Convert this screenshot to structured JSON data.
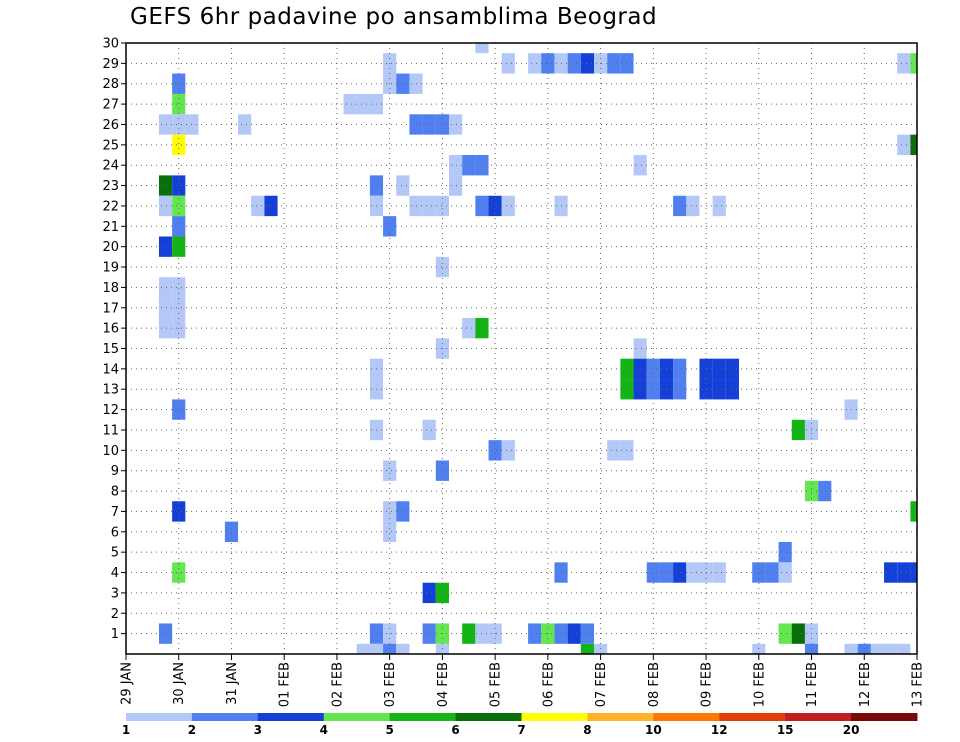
{
  "chart_data": {
    "type": "heatmap",
    "title": "GEFS 6hr padavine po ansamblima Beograd",
    "x_ticks": [
      "29 JAN",
      "30 JAN",
      "31 JAN",
      "01 FEB",
      "02 FEB",
      "03 FEB",
      "04 FEB",
      "05 FEB",
      "06 FEB",
      "07 FEB",
      "08 FEB",
      "09 FEB",
      "10 FEB",
      "11 FEB",
      "12 FEB",
      "13 FEB"
    ],
    "y_ticks": [
      1,
      2,
      3,
      4,
      5,
      6,
      7,
      8,
      9,
      10,
      11,
      12,
      13,
      14,
      15,
      16,
      17,
      18,
      19,
      20,
      21,
      22,
      23,
      24,
      25,
      26,
      27,
      28,
      29,
      30
    ],
    "x_range": [
      "29 JAN 00Z",
      "13 FEB 00Z"
    ],
    "y_range": [
      0,
      30
    ],
    "grid": true,
    "colorbar": {
      "labels": [
        "1",
        "2",
        "3",
        "4",
        "5",
        "6",
        "7",
        "8",
        "10",
        "12",
        "15",
        "20"
      ],
      "colors": [
        "#b4c8f8",
        "#5080f0",
        "#1440d8",
        "#64e650",
        "#14b414",
        "#0a6e0a",
        "#ffff00",
        "#ffb428",
        "#ff7800",
        "#e63c0a",
        "#c31e1e",
        "#780a0a"
      ]
    },
    "cells": [
      {
        "member": 30,
        "date": "04 FEB 18Z",
        "class": 1
      },
      {
        "member": 29,
        "date": "03 FEB 00Z",
        "class": 1
      },
      {
        "member": 29,
        "date": "05 FEB 06Z",
        "class": 1
      },
      {
        "member": 29,
        "date": "05 FEB 18Z",
        "class": 1
      },
      {
        "member": 29,
        "date": "06 FEB 00Z",
        "class": 2
      },
      {
        "member": 29,
        "date": "06 FEB 06Z",
        "class": 1
      },
      {
        "member": 29,
        "date": "06 FEB 12Z",
        "class": 2
      },
      {
        "member": 29,
        "date": "06 FEB 18Z",
        "class": 3
      },
      {
        "member": 29,
        "date": "07 FEB 00Z",
        "class": 1
      },
      {
        "member": 29,
        "date": "07 FEB 06Z",
        "class": 2
      },
      {
        "member": 29,
        "date": "07 FEB 12Z",
        "class": 2
      },
      {
        "member": 29,
        "date": "12 FEB 18Z",
        "class": 1
      },
      {
        "member": 29,
        "date": "13 FEB 00Z",
        "class": 4
      },
      {
        "member": 28,
        "date": "30 JAN 00Z",
        "class": 2
      },
      {
        "member": 28,
        "date": "03 FEB 00Z",
        "class": 1
      },
      {
        "member": 28,
        "date": "03 FEB 06Z",
        "class": 2
      },
      {
        "member": 28,
        "date": "03 FEB 12Z",
        "class": 1
      },
      {
        "member": 27,
        "date": "30 JAN 00Z",
        "class": 4
      },
      {
        "member": 27,
        "date": "02 FEB 06Z",
        "class": 1
      },
      {
        "member": 27,
        "date": "02 FEB 12Z",
        "class": 1
      },
      {
        "member": 27,
        "date": "02 FEB 18Z",
        "class": 1
      },
      {
        "member": 26,
        "date": "29 JAN 18Z",
        "class": 1
      },
      {
        "member": 26,
        "date": "30 JAN 00Z",
        "class": 1
      },
      {
        "member": 26,
        "date": "30 JAN 06Z",
        "class": 1
      },
      {
        "member": 26,
        "date": "31 JAN 06Z",
        "class": 1
      },
      {
        "member": 26,
        "date": "03 FEB 12Z",
        "class": 2
      },
      {
        "member": 26,
        "date": "03 FEB 18Z",
        "class": 2
      },
      {
        "member": 26,
        "date": "04 FEB 00Z",
        "class": 2
      },
      {
        "member": 26,
        "date": "04 FEB 06Z",
        "class": 1
      },
      {
        "member": 25,
        "date": "30 JAN 00Z",
        "class": 7
      },
      {
        "member": 25,
        "date": "12 FEB 18Z",
        "class": 1
      },
      {
        "member": 25,
        "date": "13 FEB 00Z",
        "class": 6
      },
      {
        "member": 24,
        "date": "04 FEB 06Z",
        "class": 1
      },
      {
        "member": 24,
        "date": "04 FEB 12Z",
        "class": 2
      },
      {
        "member": 24,
        "date": "04 FEB 18Z",
        "class": 2
      },
      {
        "member": 24,
        "date": "07 FEB 18Z",
        "class": 1
      },
      {
        "member": 23,
        "date": "29 JAN 18Z",
        "class": 6
      },
      {
        "member": 23,
        "date": "30 JAN 00Z",
        "class": 3
      },
      {
        "member": 23,
        "date": "02 FEB 18Z",
        "class": 2
      },
      {
        "member": 23,
        "date": "03 FEB 06Z",
        "class": 1
      },
      {
        "member": 23,
        "date": "04 FEB 06Z",
        "class": 1
      },
      {
        "member": 22,
        "date": "29 JAN 18Z",
        "class": 1
      },
      {
        "member": 22,
        "date": "30 JAN 00Z",
        "class": 4
      },
      {
        "member": 22,
        "date": "31 JAN 12Z",
        "class": 1
      },
      {
        "member": 22,
        "date": "31 JAN 18Z",
        "class": 3
      },
      {
        "member": 22,
        "date": "02 FEB 18Z",
        "class": 1
      },
      {
        "member": 22,
        "date": "03 FEB 12Z",
        "class": 1
      },
      {
        "member": 22,
        "date": "03 FEB 18Z",
        "class": 1
      },
      {
        "member": 22,
        "date": "04 FEB 00Z",
        "class": 1
      },
      {
        "member": 22,
        "date": "04 FEB 18Z",
        "class": 2
      },
      {
        "member": 22,
        "date": "05 FEB 00Z",
        "class": 3
      },
      {
        "member": 22,
        "date": "05 FEB 06Z",
        "class": 1
      },
      {
        "member": 22,
        "date": "06 FEB 06Z",
        "class": 1
      },
      {
        "member": 22,
        "date": "08 FEB 12Z",
        "class": 2
      },
      {
        "member": 22,
        "date": "08 FEB 18Z",
        "class": 1
      },
      {
        "member": 22,
        "date": "09 FEB 06Z",
        "class": 1
      },
      {
        "member": 21,
        "date": "30 JAN 00Z",
        "class": 2
      },
      {
        "member": 21,
        "date": "03 FEB 00Z",
        "class": 2
      },
      {
        "member": 20,
        "date": "29 JAN 18Z",
        "class": 3
      },
      {
        "member": 20,
        "date": "30 JAN 00Z",
        "class": 5
      },
      {
        "member": 19,
        "date": "04 FEB 00Z",
        "class": 1
      },
      {
        "member": 18,
        "date": "29 JAN 18Z",
        "class": 1
      },
      {
        "member": 18,
        "date": "30 JAN 00Z",
        "class": 1
      },
      {
        "member": 17,
        "date": "29 JAN 18Z",
        "class": 1
      },
      {
        "member": 17,
        "date": "30 JAN 00Z",
        "class": 1
      },
      {
        "member": 16,
        "date": "29 JAN 18Z",
        "class": 1
      },
      {
        "member": 16,
        "date": "30 JAN 00Z",
        "class": 1
      },
      {
        "member": 16,
        "date": "04 FEB 12Z",
        "class": 1
      },
      {
        "member": 16,
        "date": "04 FEB 18Z",
        "class": 5
      },
      {
        "member": 15,
        "date": "04 FEB 00Z",
        "class": 1
      },
      {
        "member": 15,
        "date": "07 FEB 18Z",
        "class": 1
      },
      {
        "member": 14,
        "date": "02 FEB 18Z",
        "class": 1
      },
      {
        "member": 14,
        "date": "07 FEB 12Z",
        "class": 5
      },
      {
        "member": 14,
        "date": "07 FEB 18Z",
        "class": 3
      },
      {
        "member": 14,
        "date": "08 FEB 00Z",
        "class": 2
      },
      {
        "member": 14,
        "date": "08 FEB 06Z",
        "class": 3
      },
      {
        "member": 14,
        "date": "08 FEB 12Z",
        "class": 2
      },
      {
        "member": 14,
        "date": "09 FEB 00Z",
        "class": 3
      },
      {
        "member": 14,
        "date": "09 FEB 06Z",
        "class": 3
      },
      {
        "member": 14,
        "date": "09 FEB 12Z",
        "class": 3
      },
      {
        "member": 13,
        "date": "02 FEB 18Z",
        "class": 1
      },
      {
        "member": 13,
        "date": "07 FEB 12Z",
        "class": 5
      },
      {
        "member": 13,
        "date": "07 FEB 18Z",
        "class": 3
      },
      {
        "member": 13,
        "date": "08 FEB 00Z",
        "class": 2
      },
      {
        "member": 13,
        "date": "08 FEB 06Z",
        "class": 3
      },
      {
        "member": 13,
        "date": "08 FEB 12Z",
        "class": 2
      },
      {
        "member": 13,
        "date": "09 FEB 00Z",
        "class": 3
      },
      {
        "member": 13,
        "date": "09 FEB 06Z",
        "class": 3
      },
      {
        "member": 13,
        "date": "09 FEB 12Z",
        "class": 3
      },
      {
        "member": 12,
        "date": "30 JAN 00Z",
        "class": 2
      },
      {
        "member": 12,
        "date": "11 FEB 18Z",
        "class": 1
      },
      {
        "member": 11,
        "date": "02 FEB 18Z",
        "class": 1
      },
      {
        "member": 11,
        "date": "03 FEB 18Z",
        "class": 1
      },
      {
        "member": 11,
        "date": "10 FEB 18Z",
        "class": 5
      },
      {
        "member": 11,
        "date": "11 FEB 00Z",
        "class": 1
      },
      {
        "member": 10,
        "date": "05 FEB 00Z",
        "class": 2
      },
      {
        "member": 10,
        "date": "05 FEB 06Z",
        "class": 1
      },
      {
        "member": 10,
        "date": "07 FEB 06Z",
        "class": 1
      },
      {
        "member": 10,
        "date": "07 FEB 12Z",
        "class": 1
      },
      {
        "member": 9,
        "date": "03 FEB 00Z",
        "class": 1
      },
      {
        "member": 9,
        "date": "04 FEB 00Z",
        "class": 2
      },
      {
        "member": 8,
        "date": "11 FEB 00Z",
        "class": 4
      },
      {
        "member": 8,
        "date": "11 FEB 06Z",
        "class": 2
      },
      {
        "member": 7,
        "date": "30 JAN 00Z",
        "class": 3
      },
      {
        "member": 7,
        "date": "03 FEB 00Z",
        "class": 1
      },
      {
        "member": 7,
        "date": "03 FEB 06Z",
        "class": 2
      },
      {
        "member": 7,
        "date": "13 FEB 00Z",
        "class": 5
      },
      {
        "member": 6,
        "date": "31 JAN 00Z",
        "class": 2
      },
      {
        "member": 6,
        "date": "03 FEB 00Z",
        "class": 1
      },
      {
        "member": 5,
        "date": "10 FEB 12Z",
        "class": 2
      },
      {
        "member": 4,
        "date": "30 JAN 00Z",
        "class": 4
      },
      {
        "member": 4,
        "date": "06 FEB 06Z",
        "class": 2
      },
      {
        "member": 4,
        "date": "08 FEB 00Z",
        "class": 2
      },
      {
        "member": 4,
        "date": "08 FEB 06Z",
        "class": 2
      },
      {
        "member": 4,
        "date": "08 FEB 12Z",
        "class": 3
      },
      {
        "member": 4,
        "date": "08 FEB 18Z",
        "class": 1
      },
      {
        "member": 4,
        "date": "09 FEB 00Z",
        "class": 1
      },
      {
        "member": 4,
        "date": "09 FEB 06Z",
        "class": 1
      },
      {
        "member": 4,
        "date": "10 FEB 00Z",
        "class": 2
      },
      {
        "member": 4,
        "date": "10 FEB 06Z",
        "class": 2
      },
      {
        "member": 4,
        "date": "10 FEB 12Z",
        "class": 1
      },
      {
        "member": 4,
        "date": "12 FEB 12Z",
        "class": 3
      },
      {
        "member": 4,
        "date": "12 FEB 18Z",
        "class": 3
      },
      {
        "member": 4,
        "date": "13 FEB 00Z",
        "class": 3
      },
      {
        "member": 3,
        "date": "03 FEB 18Z",
        "class": 3
      },
      {
        "member": 3,
        "date": "04 FEB 00Z",
        "class": 5
      },
      {
        "member": 1,
        "date": "29 JAN 18Z",
        "class": 2
      },
      {
        "member": 1,
        "date": "02 FEB 18Z",
        "class": 2
      },
      {
        "member": 1,
        "date": "03 FEB 00Z",
        "class": 1
      },
      {
        "member": 1,
        "date": "03 FEB 18Z",
        "class": 2
      },
      {
        "member": 1,
        "date": "04 FEB 00Z",
        "class": 4
      },
      {
        "member": 1,
        "date": "04 FEB 12Z",
        "class": 5
      },
      {
        "member": 1,
        "date": "04 FEB 18Z",
        "class": 1
      },
      {
        "member": 1,
        "date": "05 FEB 00Z",
        "class": 1
      },
      {
        "member": 1,
        "date": "05 FEB 18Z",
        "class": 2
      },
      {
        "member": 1,
        "date": "06 FEB 00Z",
        "class": 4
      },
      {
        "member": 1,
        "date": "06 FEB 06Z",
        "class": 2
      },
      {
        "member": 1,
        "date": "06 FEB 12Z",
        "class": 3
      },
      {
        "member": 1,
        "date": "06 FEB 18Z",
        "class": 2
      },
      {
        "member": 1,
        "date": "10 FEB 12Z",
        "class": 4
      },
      {
        "member": 1,
        "date": "10 FEB 18Z",
        "class": 6
      },
      {
        "member": 1,
        "date": "11 FEB 00Z",
        "class": 1
      },
      {
        "member": 0,
        "date": "02 FEB 12Z",
        "class": 1
      },
      {
        "member": 0,
        "date": "02 FEB 18Z",
        "class": 1
      },
      {
        "member": 0,
        "date": "03 FEB 00Z",
        "class": 2
      },
      {
        "member": 0,
        "date": "03 FEB 06Z",
        "class": 1
      },
      {
        "member": 0,
        "date": "04 FEB 00Z",
        "class": 1
      },
      {
        "member": 0,
        "date": "06 FEB 18Z",
        "class": 5
      },
      {
        "member": 0,
        "date": "07 FEB 00Z",
        "class": 1
      },
      {
        "member": 0,
        "date": "10 FEB 00Z",
        "class": 1
      },
      {
        "member": 0,
        "date": "11 FEB 00Z",
        "class": 2
      },
      {
        "member": 0,
        "date": "11 FEB 18Z",
        "class": 1
      },
      {
        "member": 0,
        "date": "12 FEB 00Z",
        "class": 2
      },
      {
        "member": 0,
        "date": "12 FEB 06Z",
        "class": 1
      },
      {
        "member": 0,
        "date": "12 FEB 12Z",
        "class": 1
      },
      {
        "member": 0,
        "date": "12 FEB 18Z",
        "class": 1
      }
    ]
  }
}
